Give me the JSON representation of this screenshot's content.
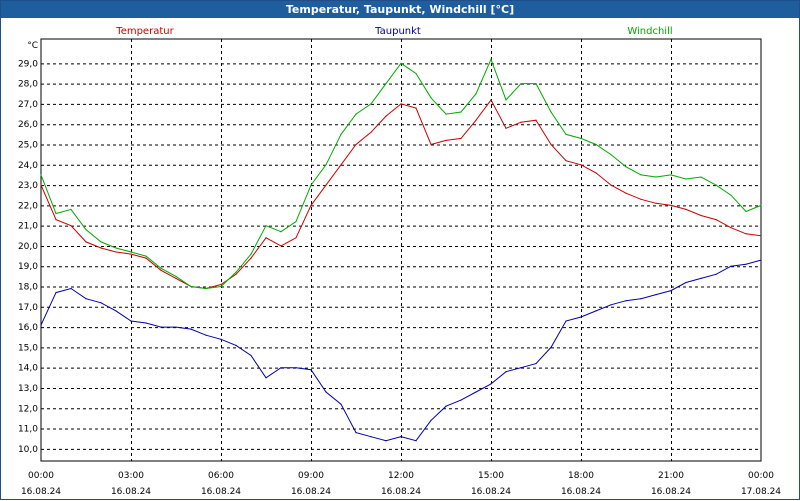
{
  "window": {
    "title": "Temperatur, Taupunkt, Windchill [°C]"
  },
  "chart_data": {
    "type": "line",
    "title": "Temperatur, Taupunkt, Windchill [°C]",
    "ylabel": "°C",
    "ylim": [
      9.4,
      30.2
    ],
    "xlim_hours": [
      0,
      24
    ],
    "grid": true,
    "legend_position": "top",
    "y_ticks": [
      "10,0",
      "11,0",
      "12,0",
      "13,0",
      "14,0",
      "15,0",
      "16,0",
      "17,0",
      "18,0",
      "19,0",
      "20,0",
      "21,0",
      "22,0",
      "23,0",
      "24,0",
      "25,0",
      "26,0",
      "27,0",
      "28,0",
      "29,0"
    ],
    "x_ticks": [
      {
        "time": "00:00",
        "date": "16.08.24"
      },
      {
        "time": "03:00",
        "date": "16.08.24"
      },
      {
        "time": "06:00",
        "date": "16.08.24"
      },
      {
        "time": "09:00",
        "date": "16.08.24"
      },
      {
        "time": "12:00",
        "date": "16.08.24"
      },
      {
        "time": "15:00",
        "date": "16.08.24"
      },
      {
        "time": "18:00",
        "date": "16.08.24"
      },
      {
        "time": "21:00",
        "date": "16.08.24"
      },
      {
        "time": "00:00",
        "date": "17.08.24"
      }
    ],
    "x_hours": [
      0,
      0.5,
      1,
      1.5,
      2,
      2.5,
      3,
      3.5,
      4,
      4.5,
      5,
      5.5,
      6,
      6.5,
      7,
      7.5,
      8,
      8.5,
      9,
      9.5,
      10,
      10.5,
      11,
      11.5,
      12,
      12.5,
      13,
      13.5,
      14,
      14.5,
      15,
      15.5,
      16,
      16.5,
      17,
      17.5,
      18,
      18.5,
      19,
      19.5,
      20,
      20.5,
      21,
      21.5,
      22,
      22.5,
      23,
      23.5,
      24
    ],
    "series": [
      {
        "name": "Temperatur",
        "color": "#cc0000",
        "values": [
          23.0,
          21.3,
          21.0,
          20.2,
          19.9,
          19.7,
          19.6,
          19.4,
          18.8,
          18.4,
          18.0,
          17.9,
          18.1,
          18.6,
          19.4,
          20.4,
          20.0,
          20.4,
          22.0,
          23.0,
          24.0,
          25.0,
          25.6,
          26.4,
          27.0,
          26.8,
          25.0,
          25.2,
          25.3,
          26.2,
          27.2,
          25.8,
          26.1,
          26.2,
          25.0,
          24.2,
          24.0,
          23.6,
          23.0,
          22.6,
          22.3,
          22.1,
          22.0,
          21.8,
          21.5,
          21.3,
          20.9,
          20.6,
          20.5
        ]
      },
      {
        "name": "Taupunkt",
        "color": "#0000aa",
        "values": [
          16.1,
          17.7,
          17.9,
          17.4,
          17.2,
          16.8,
          16.3,
          16.2,
          16.0,
          16.0,
          15.9,
          15.6,
          15.4,
          15.1,
          14.6,
          13.5,
          14.0,
          14.0,
          13.9,
          12.8,
          12.2,
          10.8,
          10.6,
          10.4,
          10.6,
          10.4,
          11.4,
          12.1,
          12.4,
          12.8,
          13.2,
          13.8,
          14.0,
          14.2,
          15.0,
          16.3,
          16.5,
          16.8,
          17.1,
          17.3,
          17.4,
          17.6,
          17.8,
          18.2,
          18.4,
          18.6,
          19.0,
          19.1,
          19.3
        ]
      },
      {
        "name": "Windchill",
        "color": "#00aa00",
        "values": [
          23.5,
          21.6,
          21.8,
          20.8,
          20.2,
          19.9,
          19.7,
          19.5,
          18.9,
          18.5,
          18.0,
          17.9,
          18.0,
          18.7,
          19.6,
          21.0,
          20.7,
          21.2,
          23.0,
          24.0,
          25.5,
          26.5,
          27.0,
          28.0,
          29.0,
          28.5,
          27.3,
          26.5,
          26.6,
          27.5,
          29.2,
          27.2,
          28.0,
          28.0,
          26.6,
          25.5,
          25.3,
          25.0,
          24.5,
          23.9,
          23.5,
          23.4,
          23.5,
          23.3,
          23.4,
          23.0,
          22.5,
          21.7,
          22.0
        ]
      }
    ]
  }
}
